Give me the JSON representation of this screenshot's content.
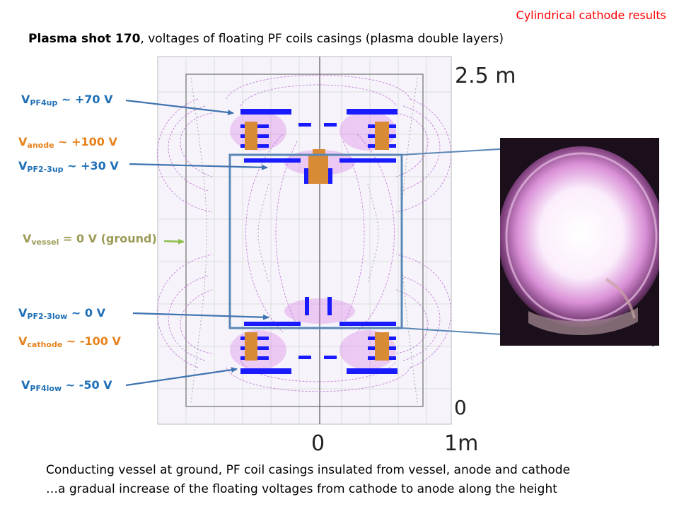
{
  "corner_tag": "Cylindrical cathode results",
  "title": {
    "bold": "Plasma shot 170",
    "rest": ", voltages of floating PF coils casings (plasma double layers)"
  },
  "voltages": {
    "pf4up": {
      "main": "V",
      "sub": "PF4up",
      "value": " ~ +70 V",
      "color": "#1f6fb7"
    },
    "anode": {
      "main": "V",
      "sub": "anode",
      "value": " ~ +100 V",
      "color": "#e7821c"
    },
    "pf23up": {
      "main": "V",
      "sub": "PF2-3up",
      "value": " ~ +30 V",
      "color": "#1f6fb7"
    },
    "vessel": {
      "main": "V",
      "sub": "vessel",
      "value": " = 0 V (ground)",
      "color": "#9c9a56"
    },
    "pf23low": {
      "main": "V",
      "sub": "PF2-3low",
      "value": " ~ 0 V",
      "color": "#1f6fb7"
    },
    "cathode": {
      "main": "V",
      "sub": "cathode",
      "value": " ~ -100 V",
      "color": "#e7821c"
    },
    "pf4low": {
      "main": "V",
      "sub": "PF4low",
      "value": " ~ -50 V",
      "color": "#1f6fb7"
    }
  },
  "axes": {
    "top_right": "2.5 m",
    "bottom_right": "0",
    "bottom_center": "0",
    "bottom_far": "1m"
  },
  "footer": {
    "line1": "Conducting vessel at ground, PF coil casings insulated from vessel, anode and cathode",
    "line2": "…a gradual increase of the floating voltages from cathode to anode along the height"
  },
  "colors": {
    "coil": "#1a1aff",
    "electrode": "#d98a34",
    "field_lines": "#c27ad8",
    "zoom_box": "#5b87b5"
  }
}
